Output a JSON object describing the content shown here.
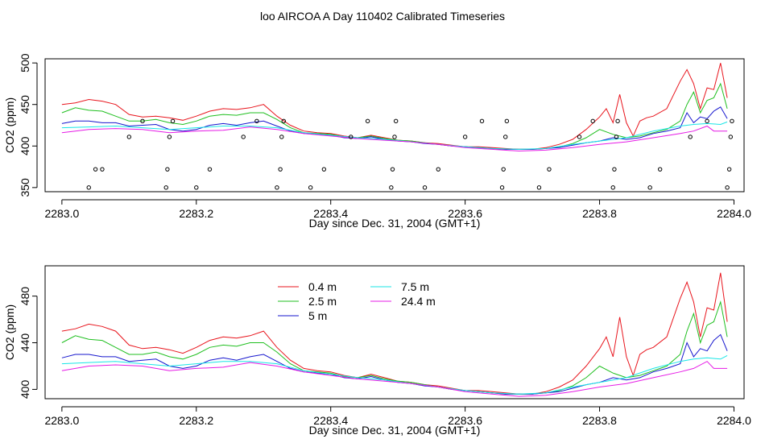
{
  "title": "loo AIRCOA A  Day 110402  Calibrated Timeseries",
  "colors": {
    "0.4 m": "#e8141c",
    "2.5 m": "#1fbf1f",
    "5 m": "#1616ce",
    "7.5 m": "#18e6e6",
    "24.4 m": "#e61be6",
    "markers": "#000000"
  },
  "chart_data": [
    {
      "type": "line",
      "panel": "top",
      "xlabel": "Day since Dec. 31, 2004 (GMT+1)",
      "ylabel": "CO2 (ppm)",
      "xlim": [
        2282.975,
        2284.015
      ],
      "ylim": [
        345,
        505
      ],
      "xticks": [
        "2283.0",
        "2283.2",
        "2283.4",
        "2283.6",
        "2283.8",
        "2284.0"
      ],
      "yticks": [
        "350",
        "400",
        "450",
        "500"
      ],
      "legend": "none",
      "grid": false,
      "series": [
        {
          "name": "0.4 m",
          "x": [
            2283.0,
            2283.02,
            2283.04,
            2283.06,
            2283.08,
            2283.1,
            2283.12,
            2283.14,
            2283.16,
            2283.18,
            2283.2,
            2283.22,
            2283.24,
            2283.26,
            2283.28,
            2283.3,
            2283.32,
            2283.34,
            2283.36,
            2283.38,
            2283.4,
            2283.42,
            2283.44,
            2283.46,
            2283.48,
            2283.5,
            2283.52,
            2283.54,
            2283.56,
            2283.58,
            2283.6,
            2283.62,
            2283.64,
            2283.66,
            2283.68,
            2283.7,
            2283.72,
            2283.74,
            2283.76,
            2283.78,
            2283.8,
            2283.81,
            2283.82,
            2283.83,
            2283.84,
            2283.85,
            2283.86,
            2283.87,
            2283.88,
            2283.9,
            2283.92,
            2283.93,
            2283.94,
            2283.95,
            2283.96,
            2283.97,
            2283.98,
            2283.99
          ],
          "y": [
            450,
            452,
            456,
            454,
            450,
            438,
            435,
            436,
            434,
            431,
            436,
            442,
            445,
            444,
            446,
            450,
            436,
            425,
            418,
            416,
            415,
            412,
            410,
            413,
            410,
            407,
            406,
            404,
            403,
            401,
            399,
            399,
            398,
            397,
            396,
            396,
            398,
            402,
            408,
            420,
            435,
            445,
            428,
            462,
            428,
            412,
            430,
            434,
            436,
            445,
            478,
            492,
            475,
            445,
            470,
            468,
            500,
            458
          ]
        },
        {
          "name": "2.5 m",
          "x": [
            2283.0,
            2283.02,
            2283.04,
            2283.06,
            2283.08,
            2283.1,
            2283.12,
            2283.14,
            2283.16,
            2283.18,
            2283.2,
            2283.22,
            2283.24,
            2283.26,
            2283.28,
            2283.3,
            2283.32,
            2283.34,
            2283.36,
            2283.38,
            2283.4,
            2283.42,
            2283.44,
            2283.46,
            2283.48,
            2283.5,
            2283.52,
            2283.54,
            2283.56,
            2283.58,
            2283.6,
            2283.62,
            2283.64,
            2283.66,
            2283.68,
            2283.7,
            2283.72,
            2283.74,
            2283.76,
            2283.78,
            2283.8,
            2283.82,
            2283.84,
            2283.86,
            2283.88,
            2283.9,
            2283.92,
            2283.93,
            2283.94,
            2283.95,
            2283.96,
            2283.97,
            2283.98,
            2283.99
          ],
          "y": [
            440,
            446,
            443,
            442,
            436,
            430,
            430,
            432,
            428,
            426,
            430,
            436,
            438,
            437,
            440,
            440,
            432,
            422,
            416,
            415,
            414,
            411,
            410,
            412,
            409,
            407,
            406,
            404,
            402,
            400,
            399,
            398,
            397,
            396,
            396,
            396,
            397,
            399,
            403,
            410,
            420,
            414,
            410,
            412,
            416,
            420,
            430,
            450,
            465,
            440,
            455,
            458,
            475,
            445
          ]
        },
        {
          "name": "5 m",
          "x": [
            2283.0,
            2283.02,
            2283.04,
            2283.06,
            2283.08,
            2283.1,
            2283.12,
            2283.14,
            2283.16,
            2283.18,
            2283.2,
            2283.22,
            2283.24,
            2283.26,
            2283.28,
            2283.3,
            2283.32,
            2283.34,
            2283.36,
            2283.38,
            2283.4,
            2283.42,
            2283.44,
            2283.46,
            2283.48,
            2283.5,
            2283.52,
            2283.54,
            2283.56,
            2283.58,
            2283.6,
            2283.62,
            2283.64,
            2283.66,
            2283.68,
            2283.7,
            2283.72,
            2283.74,
            2283.76,
            2283.78,
            2283.8,
            2283.82,
            2283.84,
            2283.86,
            2283.88,
            2283.9,
            2283.92,
            2283.93,
            2283.94,
            2283.95,
            2283.96,
            2283.97,
            2283.98,
            2283.99
          ],
          "y": [
            427,
            430,
            430,
            428,
            428,
            424,
            425,
            426,
            420,
            418,
            420,
            425,
            427,
            425,
            428,
            430,
            424,
            418,
            415,
            414,
            413,
            410,
            409,
            411,
            408,
            406,
            405,
            403,
            402,
            400,
            399,
            398,
            397,
            396,
            396,
            396,
            397,
            398,
            401,
            404,
            406,
            410,
            408,
            410,
            415,
            418,
            422,
            440,
            428,
            435,
            433,
            442,
            447,
            433
          ]
        },
        {
          "name": "7.5 m",
          "x": [
            2283.0,
            2283.04,
            2283.08,
            2283.12,
            2283.16,
            2283.2,
            2283.24,
            2283.28,
            2283.32,
            2283.36,
            2283.4,
            2283.44,
            2283.48,
            2283.52,
            2283.56,
            2283.6,
            2283.64,
            2283.68,
            2283.72,
            2283.76,
            2283.8,
            2283.84,
            2283.88,
            2283.92,
            2283.94,
            2283.96,
            2283.98,
            2283.99
          ],
          "y": [
            422,
            423,
            424,
            422,
            420,
            422,
            424,
            424,
            422,
            416,
            413,
            410,
            408,
            405,
            402,
            399,
            397,
            396,
            397,
            402,
            406,
            410,
            418,
            424,
            426,
            427,
            426,
            429
          ]
        },
        {
          "name": "24.4 m",
          "x": [
            2283.0,
            2283.04,
            2283.08,
            2283.12,
            2283.16,
            2283.2,
            2283.24,
            2283.28,
            2283.32,
            2283.36,
            2283.4,
            2283.44,
            2283.48,
            2283.52,
            2283.56,
            2283.6,
            2283.64,
            2283.68,
            2283.72,
            2283.76,
            2283.8,
            2283.84,
            2283.88,
            2283.92,
            2283.94,
            2283.96,
            2283.97,
            2283.99
          ],
          "y": [
            416,
            420,
            421,
            420,
            416,
            418,
            419,
            423,
            420,
            415,
            412,
            409,
            407,
            405,
            402,
            398,
            396,
            394,
            395,
            398,
            402,
            405,
            410,
            415,
            418,
            424,
            418,
            418
          ]
        },
        {
          "name": "markers",
          "x": [
            2283.04,
            2283.05,
            2283.06,
            2283.1,
            2283.12,
            2283.155,
            2283.157,
            2283.16,
            2283.165,
            2283.2,
            2283.22,
            2283.27,
            2283.29,
            2283.32,
            2283.325,
            2283.327,
            2283.33,
            2283.37,
            2283.39,
            2283.43,
            2283.455,
            2283.49,
            2283.492,
            2283.495,
            2283.497,
            2283.54,
            2283.56,
            2283.6,
            2283.625,
            2283.655,
            2283.657,
            2283.66,
            2283.662,
            2283.71,
            2283.725,
            2283.77,
            2283.79,
            2283.82,
            2283.822,
            2283.825,
            2283.827,
            2283.875,
            2283.89,
            2283.935,
            2283.96,
            2283.99,
            2283.993,
            2283.995,
            2283.997
          ],
          "y": [
            350,
            372,
            372,
            411,
            430,
            350,
            372,
            411,
            430,
            350,
            372,
            411,
            430,
            350,
            372,
            411,
            430,
            350,
            372,
            411,
            430,
            350,
            372,
            411,
            430,
            350,
            372,
            411,
            430,
            350,
            372,
            411,
            430,
            350,
            372,
            411,
            430,
            350,
            372,
            411,
            430,
            350,
            372,
            411,
            430,
            350,
            372,
            411,
            430
          ]
        }
      ]
    },
    {
      "type": "line",
      "panel": "bottom",
      "xlabel": "Day since Dec. 31, 2004 (GMT+1)",
      "ylabel": "CO2 (ppm)",
      "xlim": [
        2282.975,
        2284.015
      ],
      "ylim": [
        392,
        506
      ],
      "xticks": [
        "2283.0",
        "2283.2",
        "2283.4",
        "2283.6",
        "2283.8",
        "2284.0"
      ],
      "yticks": [
        "400",
        "440",
        "480"
      ],
      "legend": "top-left",
      "legend_entries": [
        "0.4 m",
        "2.5 m",
        "5 m",
        "7.5 m",
        "24.4 m"
      ],
      "grid": false
    }
  ]
}
